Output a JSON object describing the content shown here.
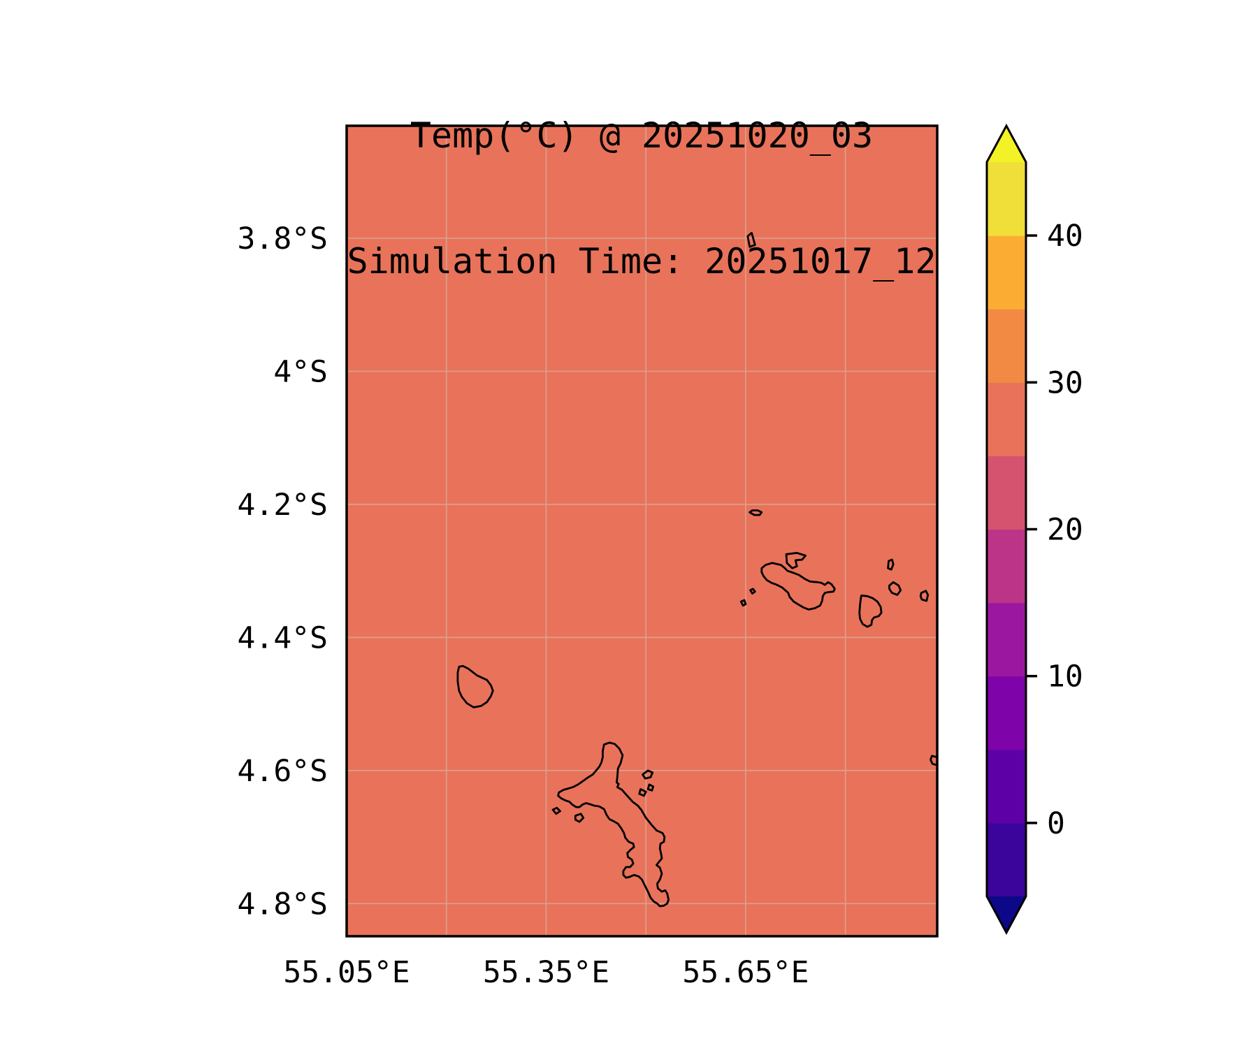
{
  "title": {
    "line1": "Temp(°C) @ 20251020_03",
    "line2": "Simulation Time: 20251017_12"
  },
  "chart_data": {
    "type": "heatmap",
    "title": "Temp(°C) @ 20251020_03",
    "subtitle": "Simulation Time: 20251017_12",
    "variable": "Temp",
    "units": "°C",
    "field_description": "uniform temperature field over ocean/islands, value within 25-30 band",
    "field_uniform_band": [
      25,
      30
    ],
    "legend_position": "right colorbar",
    "grid": true,
    "axes": {
      "lon_range": [
        55.05,
        55.938
      ],
      "lat_range_south": [
        3.631,
        4.849
      ],
      "x_ticks": {
        "values": [
          55.05,
          55.35,
          55.65
        ],
        "labels": [
          "55.05°E",
          "55.35°E",
          "55.65°E"
        ]
      },
      "y_ticks": {
        "values": [
          3.8,
          4.0,
          4.2,
          4.4,
          4.6,
          4.8
        ],
        "labels": [
          "3.8°S",
          "4°S",
          "4.2°S",
          "4.4°S",
          "4.6°S",
          "4.8°S"
        ]
      },
      "x_gridline_values": [
        55.2,
        55.35,
        55.5,
        55.65,
        55.8
      ],
      "y_gridline_values": [
        3.8,
        4.0,
        4.2,
        4.4,
        4.6,
        4.8
      ]
    },
    "colors": {
      "map_fill": "#E8735A",
      "gridline": "#DB9E8F",
      "coastline": "#000000",
      "border": "#000000",
      "background": "#FFFFFF"
    },
    "colorbar": {
      "levels": [
        -5,
        0,
        5,
        10,
        15,
        20,
        25,
        30,
        35,
        40,
        45
      ],
      "band_colors": [
        "#3B049A",
        "#5D01A6",
        "#7E03A8",
        "#9C17A0",
        "#BB3488",
        "#D5536F",
        "#E8735A",
        "#F28A44",
        "#FBAD33",
        "#F0DF39"
      ],
      "under_color": "#0D0887",
      "over_color": "#F3F227",
      "tick_values": [
        0,
        10,
        20,
        30,
        40
      ],
      "tick_labels": [
        "0",
        "10",
        "20",
        "30",
        "40"
      ],
      "extend": "both"
    },
    "islands": [
      {
        "points": [
          [
            55.437,
            4.561
          ],
          [
            55.445,
            4.558
          ],
          [
            55.453,
            4.56
          ],
          [
            55.46,
            4.567
          ],
          [
            55.465,
            4.577
          ],
          [
            55.462,
            4.589
          ],
          [
            55.458,
            4.597
          ],
          [
            55.457,
            4.61
          ],
          [
            55.456,
            4.618
          ],
          [
            55.459,
            4.62
          ],
          [
            55.457,
            4.625
          ],
          [
            55.464,
            4.629
          ],
          [
            55.471,
            4.637
          ],
          [
            55.48,
            4.647
          ],
          [
            55.488,
            4.653
          ],
          [
            55.493,
            4.659
          ],
          [
            55.5,
            4.671
          ],
          [
            55.508,
            4.681
          ],
          [
            55.516,
            4.69
          ],
          [
            55.525,
            4.694
          ],
          [
            55.528,
            4.7
          ],
          [
            55.527,
            4.707
          ],
          [
            55.522,
            4.71
          ],
          [
            55.521,
            4.717
          ],
          [
            55.523,
            4.726
          ],
          [
            55.524,
            4.732
          ],
          [
            55.52,
            4.737
          ],
          [
            55.516,
            4.742
          ],
          [
            55.521,
            4.746
          ],
          [
            55.524,
            4.755
          ],
          [
            55.521,
            4.764
          ],
          [
            55.517,
            4.77
          ],
          [
            55.518,
            4.777
          ],
          [
            55.524,
            4.782
          ],
          [
            55.529,
            4.78
          ],
          [
            55.532,
            4.785
          ],
          [
            55.534,
            4.794
          ],
          [
            55.532,
            4.8
          ],
          [
            55.527,
            4.803
          ],
          [
            55.521,
            4.804
          ],
          [
            55.517,
            4.8
          ],
          [
            55.512,
            4.797
          ],
          [
            55.507,
            4.791
          ],
          [
            55.503,
            4.782
          ],
          [
            55.499,
            4.774
          ],
          [
            55.494,
            4.764
          ],
          [
            55.489,
            4.759
          ],
          [
            55.482,
            4.757
          ],
          [
            55.475,
            4.76
          ],
          [
            55.47,
            4.761
          ],
          [
            55.466,
            4.757
          ],
          [
            55.466,
            4.751
          ],
          [
            55.47,
            4.745
          ],
          [
            55.476,
            4.745
          ],
          [
            55.481,
            4.74
          ],
          [
            55.479,
            4.734
          ],
          [
            55.473,
            4.73
          ],
          [
            55.472,
            4.724
          ],
          [
            55.477,
            4.719
          ],
          [
            55.482,
            4.715
          ],
          [
            55.481,
            4.71
          ],
          [
            55.474,
            4.707
          ],
          [
            55.469,
            4.701
          ],
          [
            55.467,
            4.694
          ],
          [
            55.463,
            4.687
          ],
          [
            55.458,
            4.68
          ],
          [
            55.451,
            4.676
          ],
          [
            55.445,
            4.673
          ],
          [
            55.441,
            4.667
          ],
          [
            55.437,
            4.658
          ],
          [
            55.43,
            4.654
          ],
          [
            55.423,
            4.653
          ],
          [
            55.417,
            4.651
          ],
          [
            55.41,
            4.649
          ],
          [
            55.405,
            4.651
          ],
          [
            55.4,
            4.655
          ],
          [
            55.395,
            4.655
          ],
          [
            55.389,
            4.651
          ],
          [
            55.385,
            4.647
          ],
          [
            55.379,
            4.645
          ],
          [
            55.373,
            4.642
          ],
          [
            55.368,
            4.638
          ],
          [
            55.369,
            4.633
          ],
          [
            55.376,
            4.629
          ],
          [
            55.383,
            4.627
          ],
          [
            55.39,
            4.625
          ],
          [
            55.398,
            4.621
          ],
          [
            55.405,
            4.616
          ],
          [
            55.412,
            4.611
          ],
          [
            55.42,
            4.606
          ],
          [
            55.426,
            4.599
          ],
          [
            55.43,
            4.594
          ],
          [
            55.433,
            4.588
          ],
          [
            55.435,
            4.58
          ],
          [
            55.435,
            4.571
          ]
        ]
      },
      {
        "points": [
          [
            55.219,
            4.444
          ],
          [
            55.225,
            4.443
          ],
          [
            55.233,
            4.447
          ],
          [
            55.246,
            4.457
          ],
          [
            55.261,
            4.464
          ],
          [
            55.267,
            4.472
          ],
          [
            55.27,
            4.48
          ],
          [
            55.267,
            4.488
          ],
          [
            55.261,
            4.497
          ],
          [
            55.252,
            4.503
          ],
          [
            55.241,
            4.505
          ],
          [
            55.231,
            4.499
          ],
          [
            55.223,
            4.489
          ],
          [
            55.219,
            4.48
          ],
          [
            55.217,
            4.466
          ],
          [
            55.217,
            4.453
          ]
        ]
      },
      {
        "points": [
          [
            55.674,
            4.296
          ],
          [
            55.68,
            4.291
          ],
          [
            55.69,
            4.288
          ],
          [
            55.703,
            4.291
          ],
          [
            55.708,
            4.295
          ],
          [
            55.713,
            4.3
          ],
          [
            55.722,
            4.303
          ],
          [
            55.73,
            4.306
          ],
          [
            55.739,
            4.312
          ],
          [
            55.747,
            4.316
          ],
          [
            55.758,
            4.317
          ],
          [
            55.764,
            4.318
          ],
          [
            55.769,
            4.321
          ],
          [
            55.774,
            4.317
          ],
          [
            55.779,
            4.32
          ],
          [
            55.784,
            4.327
          ],
          [
            55.782,
            4.331
          ],
          [
            55.774,
            4.332
          ],
          [
            55.769,
            4.333
          ],
          [
            55.766,
            4.338
          ],
          [
            55.765,
            4.345
          ],
          [
            55.762,
            4.352
          ],
          [
            55.754,
            4.356
          ],
          [
            55.745,
            4.358
          ],
          [
            55.737,
            4.355
          ],
          [
            55.73,
            4.351
          ],
          [
            55.722,
            4.346
          ],
          [
            55.716,
            4.339
          ],
          [
            55.714,
            4.333
          ],
          [
            55.705,
            4.325
          ],
          [
            55.697,
            4.321
          ],
          [
            55.689,
            4.318
          ],
          [
            55.682,
            4.314
          ],
          [
            55.677,
            4.308
          ],
          [
            55.674,
            4.302
          ]
        ]
      },
      {
        "points": [
          [
            55.711,
            4.275
          ],
          [
            55.727,
            4.273
          ],
          [
            55.74,
            4.277
          ],
          [
            55.735,
            4.283
          ],
          [
            55.725,
            4.284
          ],
          [
            55.727,
            4.293
          ],
          [
            55.72,
            4.296
          ],
          [
            55.712,
            4.288
          ]
        ]
      },
      {
        "points": [
          [
            55.824,
            4.337
          ],
          [
            55.833,
            4.338
          ],
          [
            55.841,
            4.341
          ],
          [
            55.848,
            4.346
          ],
          [
            55.853,
            4.354
          ],
          [
            55.854,
            4.363
          ],
          [
            55.85,
            4.368
          ],
          [
            55.843,
            4.37
          ],
          [
            55.84,
            4.374
          ],
          [
            55.839,
            4.381
          ],
          [
            55.833,
            4.384
          ],
          [
            55.826,
            4.38
          ],
          [
            55.822,
            4.372
          ],
          [
            55.821,
            4.363
          ],
          [
            55.822,
            4.351
          ],
          [
            55.823,
            4.342
          ]
        ]
      },
      {
        "points": [
          [
            55.656,
            4.212
          ],
          [
            55.66,
            4.209
          ],
          [
            55.668,
            4.209
          ],
          [
            55.674,
            4.212
          ],
          [
            55.671,
            4.216
          ],
          [
            55.663,
            4.216
          ]
        ]
      },
      {
        "points": [
          [
            55.653,
            3.797
          ],
          [
            55.659,
            3.792
          ],
          [
            55.664,
            3.81
          ],
          [
            55.656,
            3.813
          ]
        ]
      },
      {
        "points": [
          [
            55.657,
            4.329
          ],
          [
            55.661,
            4.327
          ],
          [
            55.664,
            4.331
          ],
          [
            55.66,
            4.334
          ]
        ]
      },
      {
        "points": [
          [
            55.643,
            4.346
          ],
          [
            55.648,
            4.344
          ],
          [
            55.65,
            4.35
          ],
          [
            55.646,
            4.352
          ]
        ]
      },
      {
        "points": [
          [
            55.865,
            4.285
          ],
          [
            55.87,
            4.283
          ],
          [
            55.872,
            4.29
          ],
          [
            55.869,
            4.298
          ],
          [
            55.864,
            4.296
          ]
        ]
      },
      {
        "points": [
          [
            55.866,
            4.322
          ],
          [
            55.872,
            4.317
          ],
          [
            55.88,
            4.322
          ],
          [
            55.883,
            4.329
          ],
          [
            55.878,
            4.336
          ],
          [
            55.87,
            4.333
          ],
          [
            55.866,
            4.327
          ]
        ]
      },
      {
        "points": [
          [
            55.914,
            4.333
          ],
          [
            55.921,
            4.33
          ],
          [
            55.924,
            4.336
          ],
          [
            55.922,
            4.345
          ],
          [
            55.915,
            4.343
          ],
          [
            55.913,
            4.338
          ]
        ]
      },
      {
        "points": [
          [
            55.93,
            4.578
          ],
          [
            55.938,
            4.58
          ],
          [
            55.938,
            4.592
          ],
          [
            55.931,
            4.59
          ],
          [
            55.928,
            4.584
          ]
        ]
      },
      {
        "points": [
          [
            55.495,
            4.606
          ],
          [
            55.503,
            4.6
          ],
          [
            55.51,
            4.603
          ],
          [
            55.507,
            4.61
          ],
          [
            55.499,
            4.612
          ]
        ]
      },
      {
        "points": [
          [
            55.505,
            4.621
          ],
          [
            55.511,
            4.624
          ],
          [
            55.509,
            4.63
          ],
          [
            55.503,
            4.628
          ]
        ]
      },
      {
        "points": [
          [
            55.492,
            4.628
          ],
          [
            55.5,
            4.632
          ],
          [
            55.497,
            4.638
          ],
          [
            55.49,
            4.635
          ]
        ]
      },
      {
        "points": [
          [
            55.36,
            4.659
          ],
          [
            55.366,
            4.656
          ],
          [
            55.371,
            4.661
          ],
          [
            55.365,
            4.665
          ]
        ]
      },
      {
        "points": [
          [
            55.394,
            4.668
          ],
          [
            55.402,
            4.665
          ],
          [
            55.406,
            4.671
          ],
          [
            55.4,
            4.677
          ],
          [
            55.394,
            4.674
          ]
        ]
      }
    ]
  }
}
